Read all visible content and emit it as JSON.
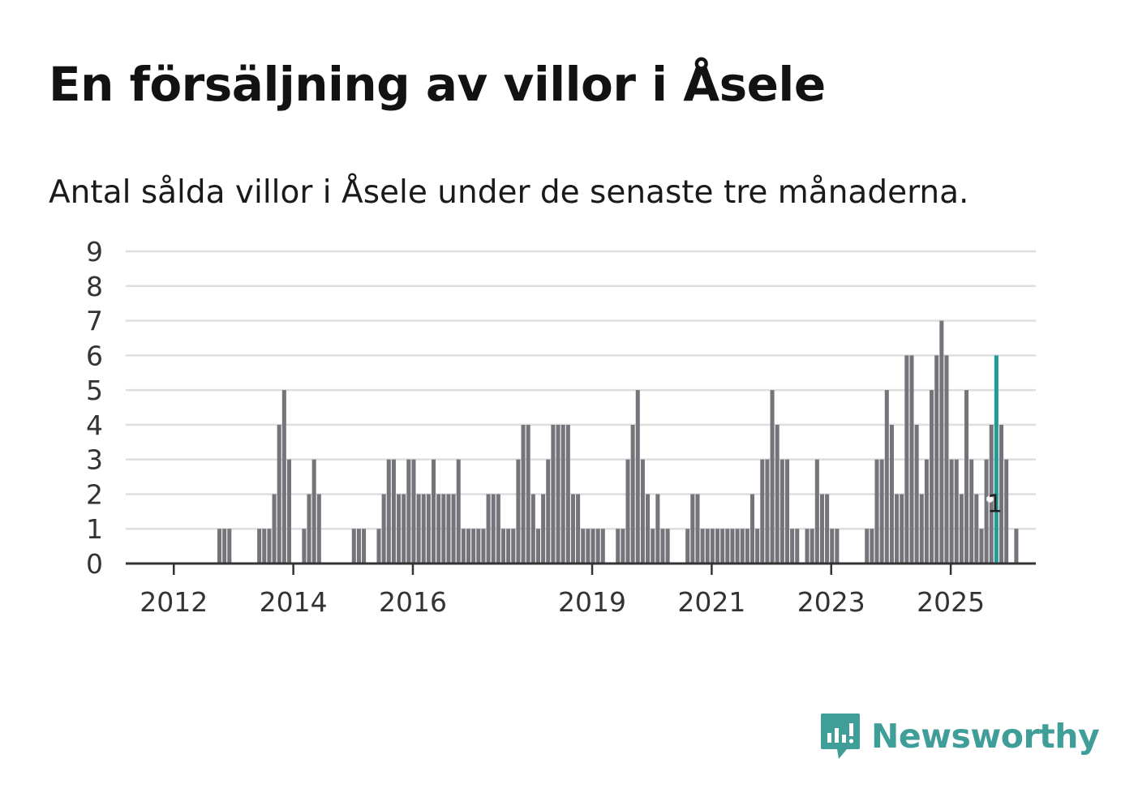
{
  "title": "En försäljning av villor i Åsele",
  "subtitle": "Antal sålda villor i Åsele under de senaste tre månaderna.",
  "brand": {
    "name": "Newsworthy"
  },
  "colors": {
    "bar": "#74747a",
    "highlight": "#1f9c96",
    "grid": "#dedede",
    "axis": "#333333",
    "text": "#333333"
  },
  "chart_data": {
    "type": "bar",
    "title": "En försäljning av villor i Åsele",
    "xlabel": "",
    "ylabel": "",
    "ylim": [
      0,
      9
    ],
    "yticks": [
      "0",
      "1",
      "2",
      "3",
      "4",
      "5",
      "6",
      "7",
      "8",
      "9"
    ],
    "grid": true,
    "start": "2011-04",
    "xticks": [
      {
        "label": "2012",
        "index": 9
      },
      {
        "label": "2014",
        "index": 33
      },
      {
        "label": "2016",
        "index": 57
      },
      {
        "label": "2019",
        "index": 93
      },
      {
        "label": "2021",
        "index": 117
      },
      {
        "label": "2023",
        "index": 141
      },
      {
        "label": "2025",
        "index": 165
      }
    ],
    "values": [
      0,
      0,
      0,
      0,
      0,
      0,
      0,
      0,
      0,
      0,
      0,
      0,
      0,
      0,
      0,
      0,
      0,
      0,
      1,
      1,
      1,
      0,
      0,
      0,
      0,
      0,
      1,
      1,
      1,
      2,
      4,
      5,
      3,
      0,
      0,
      1,
      2,
      3,
      2,
      0,
      0,
      0,
      0,
      0,
      0,
      1,
      1,
      1,
      0,
      0,
      1,
      2,
      3,
      3,
      2,
      2,
      3,
      3,
      2,
      2,
      2,
      3,
      2,
      2,
      2,
      2,
      3,
      1,
      1,
      1,
      1,
      1,
      2,
      2,
      2,
      1,
      1,
      1,
      3,
      4,
      4,
      2,
      1,
      2,
      3,
      4,
      4,
      4,
      4,
      2,
      2,
      1,
      1,
      1,
      1,
      1,
      0,
      0,
      1,
      1,
      3,
      4,
      5,
      3,
      2,
      1,
      2,
      1,
      1,
      0,
      0,
      0,
      1,
      2,
      2,
      1,
      1,
      1,
      1,
      1,
      1,
      1,
      1,
      1,
      1,
      2,
      1,
      3,
      3,
      5,
      4,
      3,
      3,
      1,
      1,
      0,
      1,
      1,
      3,
      2,
      2,
      1,
      1,
      0,
      0,
      0,
      0,
      0,
      1,
      1,
      3,
      3,
      5,
      4,
      2,
      2,
      6,
      6,
      4,
      2,
      3,
      5,
      6,
      7,
      6,
      3,
      3,
      2,
      5,
      3,
      2,
      1,
      3,
      4,
      6,
      4,
      3,
      0,
      1
    ],
    "highlight": {
      "index": 174,
      "label": "1"
    }
  }
}
